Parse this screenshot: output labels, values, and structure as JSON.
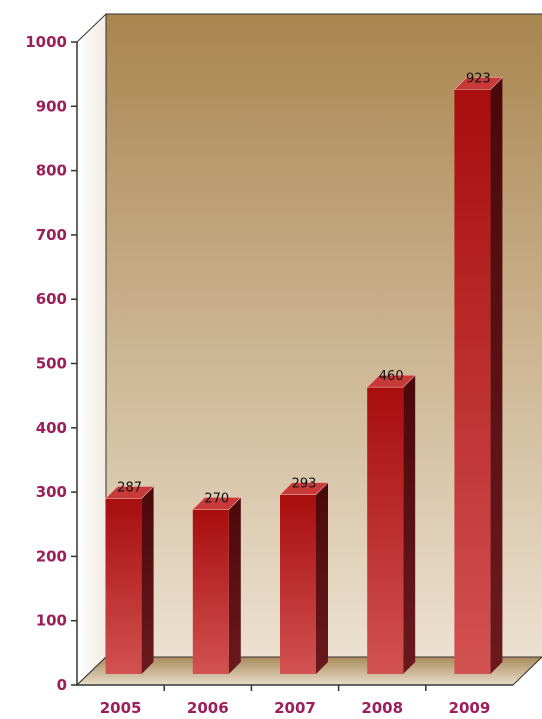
{
  "chart_data": {
    "type": "bar",
    "style": "3d",
    "categories": [
      "2005",
      "2006",
      "2007",
      "2008",
      "2009"
    ],
    "values": [
      287,
      270,
      293,
      460,
      923
    ],
    "data_labels": [
      "287",
      "270",
      "293",
      "460",
      "923"
    ],
    "title": "",
    "xlabel": "",
    "ylabel": "",
    "ylim": [
      0,
      1000
    ],
    "yticks": [
      "0",
      "100",
      "200",
      "300",
      "400",
      "500",
      "600",
      "700",
      "800",
      "900",
      "1000"
    ],
    "grid": false,
    "legend": "none",
    "colors": {
      "bar_front_top": "#a80d0d",
      "bar_front_bottom": "#d25252",
      "bar_side": "#5e0f12",
      "bar_top": "#c83a3a",
      "wall_top": "#a9854f",
      "wall_bottom": "#ece1d0",
      "tick_text": "#9c1e5a"
    }
  }
}
